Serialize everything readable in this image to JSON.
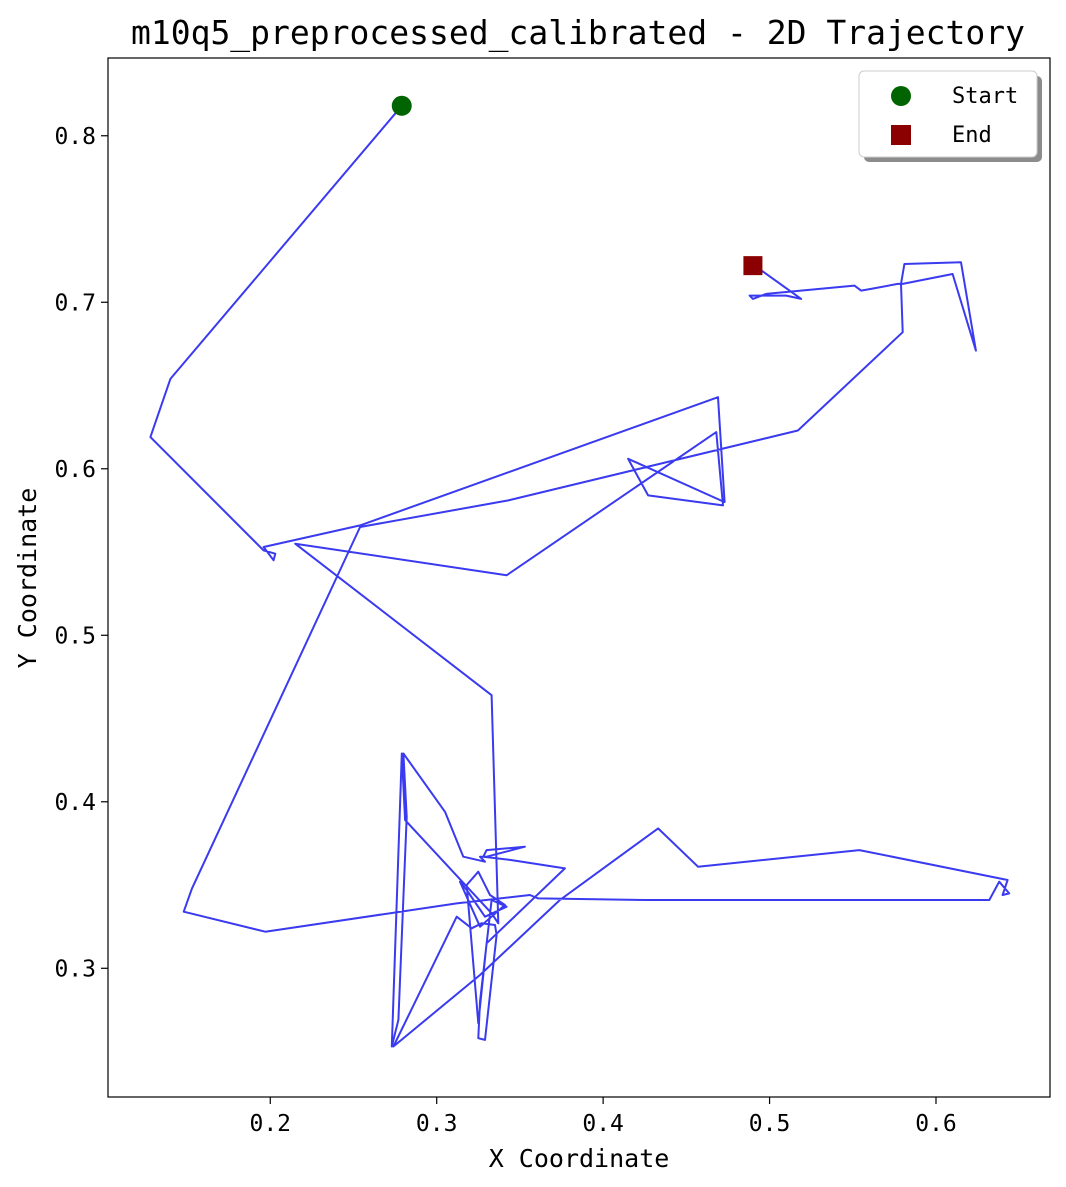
{
  "chart_data": {
    "type": "line",
    "title": "m10q5_preprocessed_calibrated - 2D Trajectory",
    "xlabel": "X Coordinate",
    "ylabel": "Y Coordinate",
    "xlim": [
      0.1025,
      0.6685
    ],
    "ylim": [
      0.2227,
      0.8467
    ],
    "xticks": [
      {
        "value": 0.2,
        "label": "0.2"
      },
      {
        "value": 0.3,
        "label": "0.3"
      },
      {
        "value": 0.4,
        "label": "0.4"
      },
      {
        "value": 0.5,
        "label": "0.5"
      },
      {
        "value": 0.6,
        "label": "0.6"
      }
    ],
    "yticks": [
      {
        "value": 0.3,
        "label": "0.3"
      },
      {
        "value": 0.4,
        "label": "0.4"
      },
      {
        "value": 0.5,
        "label": "0.5"
      },
      {
        "value": 0.6,
        "label": "0.6"
      },
      {
        "value": 0.7,
        "label": "0.7"
      },
      {
        "value": 0.8,
        "label": "0.8"
      }
    ],
    "grid": false,
    "legend": {
      "placement": "top-right",
      "entries": [
        {
          "label": "Start",
          "marker": "circle",
          "color": "#006400"
        },
        {
          "label": "End",
          "marker": "square",
          "color": "#8b0000"
        }
      ]
    },
    "trajectory": {
      "color": "#2f2fef",
      "x": [
        0.279,
        0.14,
        0.128,
        0.196,
        0.203,
        0.202,
        0.196,
        0.254,
        0.469,
        0.473,
        0.415,
        0.427,
        0.472,
        0.468,
        0.342,
        0.215,
        0.333,
        0.337,
        0.333,
        0.281,
        0.279,
        0.273,
        0.277,
        0.282,
        0.28,
        0.305,
        0.316,
        0.329,
        0.326,
        0.33,
        0.353,
        0.33,
        0.328,
        0.345,
        0.377,
        0.33,
        0.325,
        0.318,
        0.325,
        0.332,
        0.341,
        0.326,
        0.314,
        0.318,
        0.329,
        0.342,
        0.333,
        0.326,
        0.325,
        0.329,
        0.336,
        0.335,
        0.327,
        0.321,
        0.312,
        0.274,
        0.326,
        0.374,
        0.433,
        0.457,
        0.554,
        0.643,
        0.64,
        0.644,
        0.638,
        0.632,
        0.426,
        0.361,
        0.356,
        0.312,
        0.197,
        0.148,
        0.153,
        0.254,
        0.343,
        0.343,
        0.517,
        0.58,
        0.579,
        0.581,
        0.615,
        0.624,
        0.61,
        0.58,
        0.577,
        0.561,
        0.555,
        0.551,
        0.498,
        0.49,
        0.488,
        0.51,
        0.519,
        0.491,
        0.49
      ],
      "y": [
        0.818,
        0.654,
        0.619,
        0.551,
        0.549,
        0.545,
        0.553,
        0.566,
        0.643,
        0.58,
        0.606,
        0.584,
        0.578,
        0.622,
        0.536,
        0.555,
        0.464,
        0.327,
        0.333,
        0.389,
        0.429,
        0.253,
        0.269,
        0.391,
        0.429,
        0.394,
        0.367,
        0.364,
        0.367,
        0.367,
        0.373,
        0.371,
        0.367,
        0.365,
        0.36,
        0.315,
        0.267,
        0.35,
        0.358,
        0.344,
        0.338,
        0.325,
        0.352,
        0.347,
        0.331,
        0.337,
        0.341,
        0.28,
        0.258,
        0.257,
        0.32,
        0.326,
        0.327,
        0.324,
        0.331,
        0.253,
        0.296,
        0.341,
        0.384,
        0.361,
        0.371,
        0.353,
        0.344,
        0.345,
        0.352,
        0.341,
        0.341,
        0.342,
        0.344,
        0.339,
        0.322,
        0.334,
        0.348,
        0.565,
        0.581,
        0.581,
        0.623,
        0.682,
        0.711,
        0.723,
        0.724,
        0.671,
        0.717,
        0.711,
        0.711,
        0.708,
        0.707,
        0.71,
        0.705,
        0.702,
        0.704,
        0.704,
        0.702,
        0.722,
        0.722
      ]
    },
    "start": {
      "x": 0.279,
      "y": 0.818
    },
    "end": {
      "x": 0.49,
      "y": 0.722
    }
  }
}
